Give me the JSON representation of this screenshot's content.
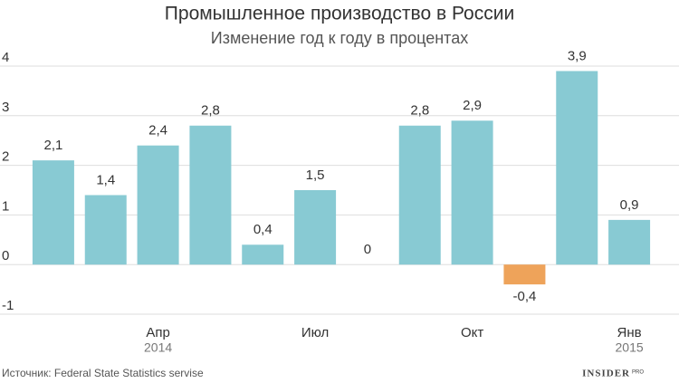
{
  "chart_data": {
    "type": "bar",
    "title": "Промышленное производство в России",
    "subtitle": "Изменение год к году в процентах",
    "categories": [
      null,
      null,
      "Апр",
      null,
      null,
      "Июл",
      null,
      null,
      "Окт",
      null,
      null,
      "Янв"
    ],
    "category_years": [
      null,
      null,
      "2014",
      null,
      null,
      null,
      null,
      null,
      null,
      null,
      null,
      "2015"
    ],
    "values": [
      2.1,
      1.4,
      2.4,
      2.8,
      0.4,
      1.5,
      0,
      2.8,
      2.9,
      -0.4,
      3.9,
      0.9
    ],
    "value_labels": [
      "2,1",
      "1,4",
      "2,4",
      "2,8",
      "0,4",
      "1,5",
      "0",
      "2,8",
      "2,9",
      "-0,4",
      "3,9",
      "0,9"
    ],
    "color": "#88cad3",
    "negative_color": "#eea35a",
    "ylim": [
      -1,
      4
    ],
    "yticks": [
      -1,
      0,
      1,
      2,
      3,
      4
    ],
    "grid": true,
    "source": "Источник: Federal State Statistics servise",
    "logo": "INSIDER",
    "logo_suffix": "PRO"
  }
}
